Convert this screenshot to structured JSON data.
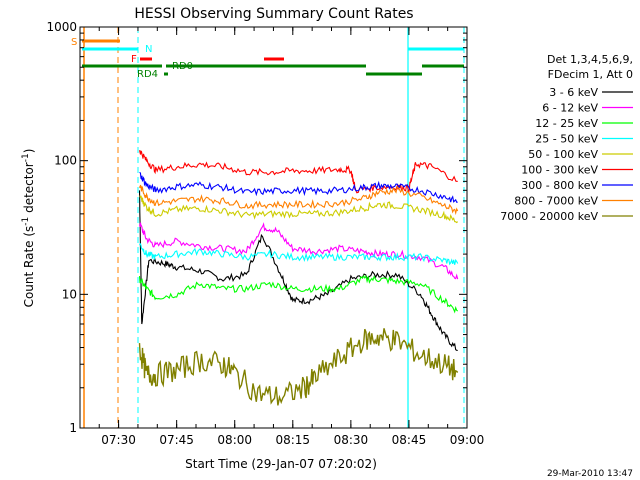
{
  "chart_data": {
    "type": "line",
    "title": "HESSI Observing Summary Count Rates",
    "xlabel": "Start Time (29-Jan-07 07:20:02)",
    "ylabel": "Count Rate (s^-1 detector^-1)",
    "ylabel_parts": {
      "base": "Count Rate (s",
      "sup": "-1",
      "mid": " detector",
      "sup2": "-1",
      "end": ")"
    },
    "yscale": "log",
    "ylim": [
      1,
      1000
    ],
    "xlim": [
      7.3339,
      9.0
    ],
    "x_ticks": [
      {
        "label": "07:30",
        "value": 7.5
      },
      {
        "label": "07:45",
        "value": 7.75
      },
      {
        "label": "08:00",
        "value": 8.0
      },
      {
        "label": "08:15",
        "value": 8.25
      },
      {
        "label": "08:30",
        "value": 8.5
      },
      {
        "label": "08:45",
        "value": 8.75
      },
      {
        "label": "09:00",
        "value": 9.0
      }
    ],
    "y_ticks": [
      {
        "label": "1",
        "value": 1
      },
      {
        "label": "10",
        "value": 10
      },
      {
        "label": "100",
        "value": 100
      },
      {
        "label": "1000",
        "value": 1000
      }
    ],
    "legend_header": [
      "Det 1,3,4,5,6,9,",
      "FDecim 1, Att 0"
    ],
    "legend_position": "right",
    "timestamp": "29-Mar-2010 13:47",
    "series": [
      {
        "name": "3 - 6 keV",
        "color": "#000000",
        "x": [
          7.59,
          7.6,
          7.63,
          7.7,
          7.75,
          7.85,
          7.95,
          8.05,
          8.12,
          8.2,
          8.25,
          8.32,
          8.4,
          8.5,
          8.6,
          8.7,
          8.8,
          8.85,
          8.9,
          8.96
        ],
        "y": [
          60,
          6,
          18,
          17,
          16,
          15,
          13,
          14,
          28,
          14,
          9,
          9,
          10,
          13,
          14,
          14,
          10,
          7,
          5,
          3.8
        ]
      },
      {
        "name": "6 - 12 keV",
        "color": "#ff00ff",
        "x": [
          7.59,
          7.62,
          7.66,
          7.75,
          7.85,
          7.95,
          8.05,
          8.12,
          8.18,
          8.25,
          8.35,
          8.45,
          8.55,
          8.62,
          8.7,
          8.8,
          8.9,
          8.96
        ],
        "y": [
          34,
          26,
          23,
          25,
          23,
          22,
          21,
          32,
          30,
          22,
          21,
          22,
          21,
          20,
          20,
          19,
          16,
          13
        ]
      },
      {
        "name": "12 - 25 keV",
        "color": "#00ff00",
        "x": [
          7.59,
          7.62,
          7.66,
          7.75,
          7.85,
          7.95,
          8.05,
          8.15,
          8.25,
          8.35,
          8.45,
          8.55,
          8.62,
          8.7,
          8.8,
          8.9,
          8.96
        ],
        "y": [
          13,
          11,
          9.5,
          10,
          12,
          11,
          11,
          12,
          11,
          11,
          11,
          13,
          13,
          12.5,
          12,
          9,
          7.5
        ]
      },
      {
        "name": "25 - 50 keV",
        "color": "#00ffff",
        "x": [
          7.59,
          7.62,
          7.66,
          7.75,
          7.85,
          7.95,
          8.05,
          8.15,
          8.25,
          8.35,
          8.45,
          8.55,
          8.62,
          8.7,
          8.8,
          8.9,
          8.96
        ],
        "y": [
          24,
          20,
          19,
          20,
          21,
          20,
          19,
          20,
          19,
          19,
          19,
          19,
          19,
          19,
          19,
          18,
          17
        ]
      },
      {
        "name": "50 - 100 keV",
        "color": "#cccc00",
        "x": [
          7.59,
          7.62,
          7.66,
          7.75,
          7.85,
          7.95,
          8.05,
          8.15,
          8.25,
          8.35,
          8.45,
          8.55,
          8.62,
          8.7,
          8.8,
          8.9,
          8.96
        ],
        "y": [
          55,
          45,
          40,
          43,
          44,
          42,
          39,
          40,
          40,
          40,
          41,
          44,
          47,
          46,
          43,
          39,
          35
        ]
      },
      {
        "name": "100 - 300 keV",
        "color": "#ff0000",
        "x": [
          7.59,
          7.62,
          7.66,
          7.75,
          7.85,
          7.95,
          8.05,
          8.15,
          8.25,
          8.35,
          8.45,
          8.5,
          8.52,
          8.6,
          8.7,
          8.75,
          8.78,
          8.85,
          8.96
        ],
        "y": [
          120,
          100,
          85,
          90,
          94,
          90,
          82,
          82,
          84,
          84,
          86,
          85,
          60,
          63,
          64,
          62,
          95,
          90,
          70
        ]
      },
      {
        "name": "300 - 800 keV",
        "color": "#0000ff",
        "x": [
          7.59,
          7.62,
          7.66,
          7.75,
          7.85,
          7.95,
          8.05,
          8.15,
          8.25,
          8.35,
          8.45,
          8.55,
          8.62,
          8.7,
          8.8,
          8.9,
          8.96
        ],
        "y": [
          80,
          66,
          60,
          64,
          66,
          63,
          58,
          59,
          60,
          59,
          60,
          63,
          65,
          64,
          60,
          54,
          49
        ]
      },
      {
        "name": "800 - 7000 keV",
        "color": "#ff8000",
        "x": [
          7.59,
          7.62,
          7.66,
          7.75,
          7.85,
          7.95,
          8.05,
          8.15,
          8.25,
          8.35,
          8.45,
          8.55,
          8.62,
          8.7,
          8.8,
          8.9,
          8.96
        ],
        "y": [
          65,
          54,
          48,
          50,
          52,
          50,
          46,
          47,
          47,
          47,
          48,
          52,
          58,
          60,
          54,
          46,
          42
        ]
      },
      {
        "name": "7000 - 20000 keV",
        "color": "#808000",
        "x": [
          7.59,
          7.62,
          7.66,
          7.75,
          7.85,
          7.95,
          8.0,
          8.1,
          8.2,
          8.3,
          8.35,
          8.45,
          8.55,
          8.62,
          8.7,
          8.8,
          8.9,
          8.96
        ],
        "y": [
          4,
          2.5,
          2.5,
          2.7,
          3.2,
          3.0,
          2.6,
          1.8,
          1.7,
          2.0,
          2.4,
          3.3,
          4.5,
          4.8,
          4.5,
          3.5,
          3.0,
          2.6
        ]
      }
    ],
    "flag_labels": [
      {
        "label": "S",
        "color": "#ff8000"
      },
      {
        "label": "N",
        "color": "#00ffff"
      },
      {
        "label": "F",
        "color": "#ff0000"
      },
      {
        "label": "RD0",
        "color": "#008000"
      },
      {
        "label": "RD4",
        "color": "#008000"
      }
    ]
  }
}
